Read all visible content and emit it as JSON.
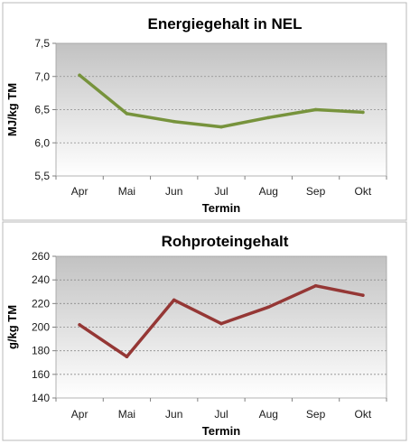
{
  "colors": {
    "plot_top": "#c2c2c2",
    "plot_bottom": "#ffffff",
    "panel_border": "#b8b8b8",
    "grid": "#8c8c8c"
  },
  "chart_data": [
    {
      "type": "line",
      "title": "Energiegehalt in NEL",
      "xlabel": "Termin",
      "ylabel": "MJ/kg TM",
      "categories": [
        "Apr",
        "Mai",
        "Jun",
        "Jul",
        "Aug",
        "Sep",
        "Okt"
      ],
      "series": [
        {
          "values": [
            7.02,
            6.44,
            6.32,
            6.24,
            6.38,
            6.5,
            6.46
          ],
          "color": "#77933c"
        }
      ],
      "ylim": [
        5.5,
        7.5
      ],
      "yticks": [
        "5,5",
        "6,0",
        "6,5",
        "7,0",
        "7,5"
      ],
      "ytick_values": [
        5.5,
        6.0,
        6.5,
        7.0,
        7.5
      ],
      "grid": true,
      "legend": "none"
    },
    {
      "type": "line",
      "title": "Rohproteingehalt",
      "xlabel": "Termin",
      "ylabel": "g/kg TM",
      "categories": [
        "Apr",
        "Mai",
        "Jun",
        "Jul",
        "Aug",
        "Sep",
        "Okt"
      ],
      "series": [
        {
          "values": [
            202,
            175,
            223,
            203,
            217,
            235,
            227
          ],
          "color": "#953735"
        }
      ],
      "ylim": [
        140,
        260
      ],
      "yticks": [
        "140",
        "160",
        "180",
        "200",
        "220",
        "240",
        "260"
      ],
      "ytick_values": [
        140,
        160,
        180,
        200,
        220,
        240,
        260
      ],
      "grid": true,
      "legend": "none"
    }
  ]
}
